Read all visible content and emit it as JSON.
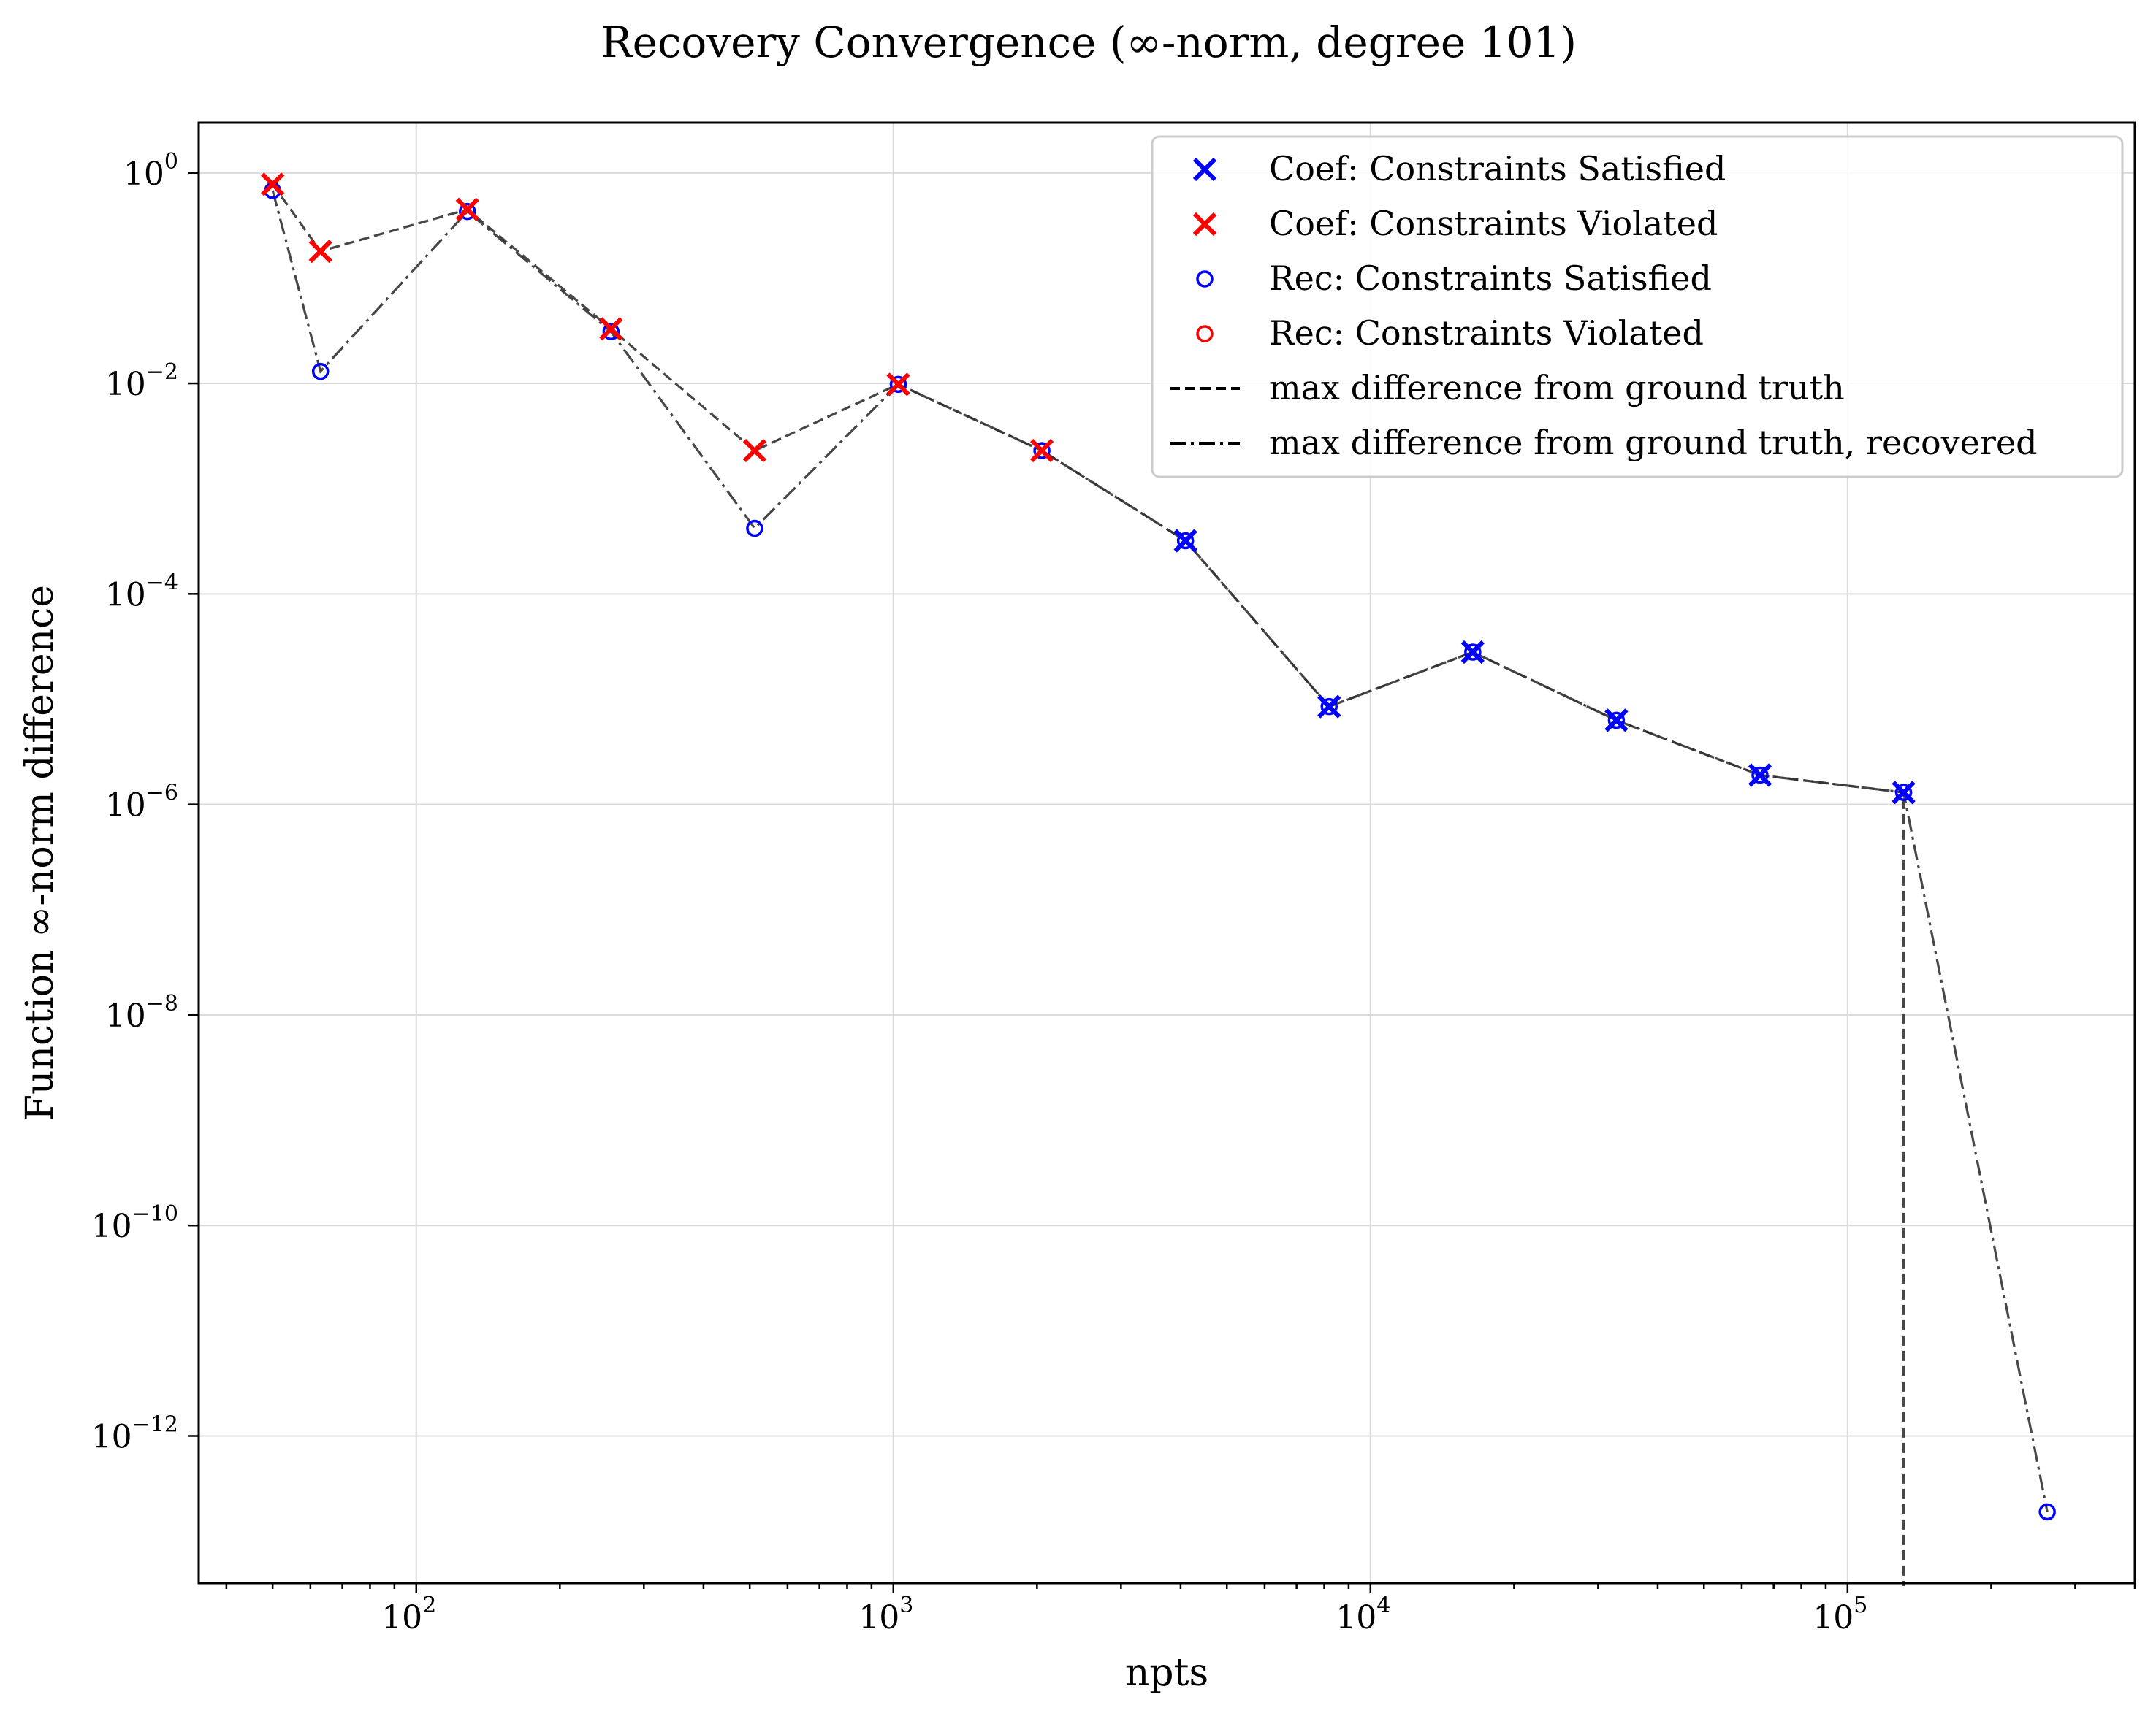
{
  "chart_data": {
    "type": "line",
    "title": "Recovery Convergence (∞-norm, degree 101)",
    "xlabel": "npts",
    "ylabel": "Function ∞-norm difference",
    "x_scale": "log",
    "y_scale": "log",
    "xlim": [
      35,
      400000
    ],
    "ylim": [
      4e-14,
      3
    ],
    "x_ticks": [
      {
        "value": 100,
        "base": "10",
        "exp": "2"
      },
      {
        "value": 1000,
        "base": "10",
        "exp": "3"
      },
      {
        "value": 10000,
        "base": "10",
        "exp": "4"
      },
      {
        "value": 100000,
        "base": "10",
        "exp": "5"
      }
    ],
    "y_ticks": [
      {
        "value": 1,
        "base": "10",
        "exp": "0"
      },
      {
        "value": 0.01,
        "base": "10",
        "exp": "−2"
      },
      {
        "value": 0.0001,
        "base": "10",
        "exp": "−4"
      },
      {
        "value": 1e-06,
        "base": "10",
        "exp": "−6"
      },
      {
        "value": 1e-08,
        "base": "10",
        "exp": "−8"
      },
      {
        "value": 1e-10,
        "base": "10",
        "exp": "−10"
      },
      {
        "value": 1e-12,
        "base": "10",
        "exp": "−12"
      }
    ],
    "grid": true,
    "legend_position": "top-right",
    "coef_series": {
      "x": [
        50,
        63,
        128,
        256,
        512,
        1024,
        2048,
        4096,
        8192,
        16384,
        32768,
        65536,
        131072
      ],
      "y": [
        0.78,
        0.18,
        0.45,
        0.033,
        0.0023,
        0.0098,
        0.0023,
        0.00032,
        8.5e-06,
        2.8e-05,
        6.3e-06,
        1.9e-06,
        1.3e-06
      ],
      "satisfied": [
        false,
        false,
        false,
        false,
        false,
        false,
        false,
        true,
        true,
        true,
        true,
        true,
        true
      ],
      "drop_to_bottom": true
    },
    "rec_series": {
      "x": [
        50,
        63,
        128,
        256,
        512,
        1024,
        2048,
        4096,
        8192,
        16384,
        32768,
        65536,
        131072,
        262144
      ],
      "y": [
        0.68,
        0.013,
        0.43,
        0.031,
        0.00042,
        0.0098,
        0.0023,
        0.00032,
        8.5e-06,
        2.8e-05,
        6.3e-06,
        1.9e-06,
        1.3e-06,
        1.9e-13
      ],
      "satisfied": [
        true,
        true,
        true,
        true,
        true,
        true,
        true,
        true,
        true,
        true,
        true,
        true,
        true,
        true
      ]
    },
    "colors": {
      "satisfied": "#0000ff",
      "violated": "#ff0000",
      "line": "#333333"
    },
    "legend": [
      {
        "label": "Coef: Constraints Satisfied",
        "marker": "x",
        "color": "#0000ff"
      },
      {
        "label": "Coef: Constraints Violated",
        "marker": "x",
        "color": "#ff0000"
      },
      {
        "label": "Rec: Constraints Satisfied",
        "marker": "o",
        "color": "#0000ff"
      },
      {
        "label": "Rec: Constraints Violated",
        "marker": "o",
        "color": "#ff0000"
      },
      {
        "label": "max difference from ground truth",
        "marker": "dashed"
      },
      {
        "label": "max difference from ground truth, recovered",
        "marker": "dashdot"
      }
    ]
  }
}
